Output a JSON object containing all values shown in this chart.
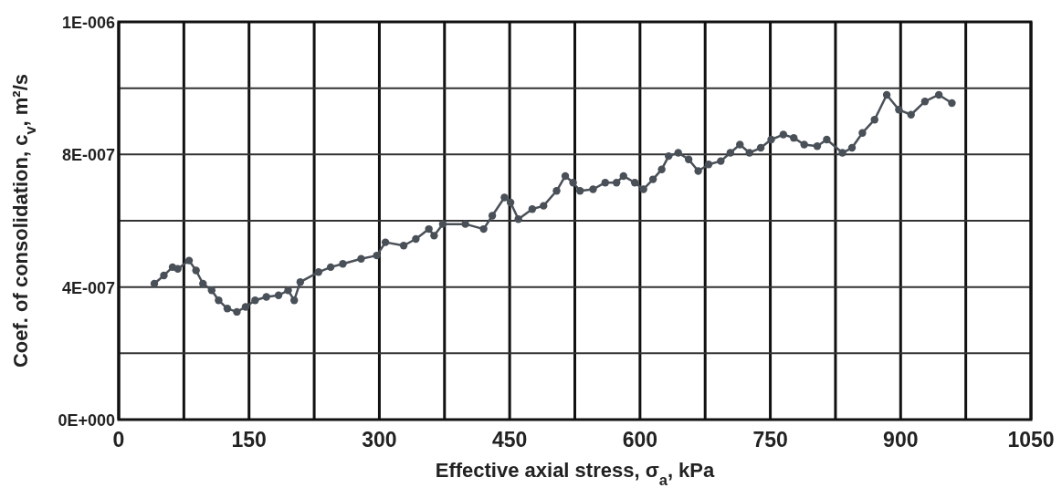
{
  "chart_data": {
    "type": "line",
    "xlabel": "Effective axial stress, σ$_{a}$, kPa",
    "ylabel": "Coef. of consolidation, c$_{v}$, m²/s",
    "xlim": [
      0,
      1050
    ],
    "xticks": [
      0,
      {
        "value": 75,
        "label": null
      },
      150,
      {
        "value": 225,
        "label": null
      },
      300,
      {
        "value": 375,
        "label": null
      },
      450,
      {
        "value": 525,
        "label": null
      },
      600,
      {
        "value": 675,
        "label": null
      },
      750,
      {
        "value": 825,
        "label": null
      },
      900,
      {
        "value": 975,
        "label": null
      },
      1050
    ],
    "ylim": [
      0,
      1.2e-06
    ],
    "yticks": [
      {
        "value": 0,
        "label": "0E+000"
      },
      {
        "value": 2e-07,
        "label": null
      },
      {
        "value": 4e-07,
        "label": "4E-007"
      },
      {
        "value": 6e-07,
        "label": null
      },
      {
        "value": 8e-07,
        "label": "8E-007"
      },
      {
        "value": 1e-06,
        "label": null
      },
      {
        "value": 1.2e-06,
        "label": "1E-006"
      }
    ],
    "grid": true,
    "marker": "circle",
    "line_style": "solid",
    "series": [
      {
        "color": "#4a5058",
        "x": [
          41,
          52,
          62,
          68,
          81,
          89,
          97,
          107,
          115,
          125,
          136,
          146,
          157,
          170,
          184,
          195,
          202,
          209,
          230,
          244,
          258,
          279,
          297,
          307,
          328,
          342,
          357,
          363,
          373,
          399,
          420,
          430,
          444,
          451,
          460,
          476,
          489,
          504,
          514,
          523,
          531,
          546,
          560,
          573,
          581,
          594,
          604,
          615,
          625,
          633,
          644,
          656,
          667,
          679,
          693,
          704,
          715,
          726,
          739,
          751,
          765,
          777,
          789,
          804,
          815,
          833,
          844,
          856,
          870,
          884,
          898,
          912,
          928,
          944,
          959
        ],
        "values": [
          4.1e-07,
          4.35e-07,
          4.6e-07,
          4.55e-07,
          4.8e-07,
          4.5e-07,
          4.1e-07,
          3.9e-07,
          3.6e-07,
          3.35e-07,
          3.25e-07,
          3.4e-07,
          3.6e-07,
          3.7e-07,
          3.75e-07,
          3.9e-07,
          3.6e-07,
          4.15e-07,
          4.45e-07,
          4.6e-07,
          4.7e-07,
          4.85e-07,
          4.95e-07,
          5.35e-07,
          5.25e-07,
          5.45e-07,
          5.75e-07,
          5.55e-07,
          5.9e-07,
          5.9e-07,
          5.75e-07,
          6.15e-07,
          6.7e-07,
          6.55e-07,
          6.05e-07,
          6.35e-07,
          6.45e-07,
          6.9e-07,
          7.35e-07,
          7.15e-07,
          6.9e-07,
          6.95e-07,
          7.15e-07,
          7.15e-07,
          7.35e-07,
          7.15e-07,
          6.95e-07,
          7.25e-07,
          7.55e-07,
          7.95e-07,
          8.05e-07,
          7.85e-07,
          7.5e-07,
          7.7e-07,
          7.8e-07,
          8.05e-07,
          8.3e-07,
          8.05e-07,
          8.2e-07,
          8.45e-07,
          8.6e-07,
          8.5e-07,
          8.3e-07,
          8.25e-07,
          8.45e-07,
          8.05e-07,
          8.2e-07,
          8.65e-07,
          9.05e-07,
          9.8e-07,
          9.35e-07,
          9.2e-07,
          9.6e-07,
          9.8e-07,
          9.55e-07
        ]
      }
    ]
  }
}
